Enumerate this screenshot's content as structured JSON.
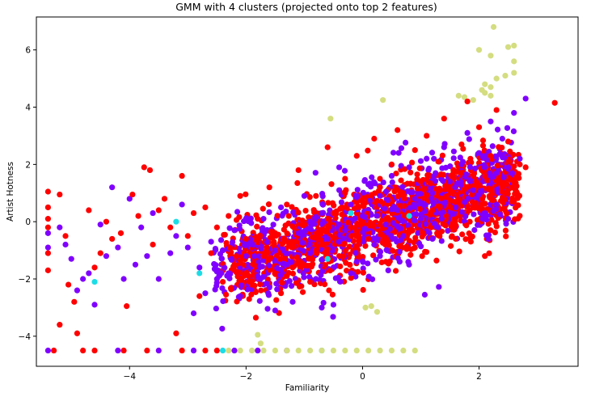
{
  "chart_data": {
    "type": "scatter",
    "title": "GMM with 4 clusters (projected onto top 2 features)",
    "xlabel": "Familiarity",
    "ylabel": "Artist Hotness",
    "xlim": [
      -5.6,
      3.7
    ],
    "ylim": [
      -5.05,
      7.15
    ],
    "xticks": [
      -4,
      -2,
      0,
      2
    ],
    "yticks": [
      -4,
      -2,
      0,
      2,
      4,
      6
    ],
    "grid": false,
    "legend": "none",
    "cluster_colors": [
      "#8000ff",
      "#1cdde6",
      "#d4dd80",
      "#ff0000"
    ],
    "clusters": [
      {
        "color": "#8000ff",
        "points": [
          [
            -5.4,
            -0.4
          ],
          [
            -5.4,
            -0.9
          ],
          [
            -5.2,
            -0.2
          ],
          [
            -5.1,
            -0.8
          ],
          [
            -5.0,
            -1.3
          ],
          [
            -4.9,
            -2.4
          ],
          [
            -4.8,
            -2.0
          ],
          [
            -4.7,
            -1.8
          ],
          [
            -4.6,
            -2.9
          ],
          [
            -4.5,
            -0.1
          ],
          [
            -4.4,
            -1.2
          ],
          [
            -4.3,
            1.2
          ],
          [
            -4.2,
            -0.9
          ],
          [
            -4.1,
            -2.0
          ],
          [
            -4.0,
            0.8
          ],
          [
            -3.9,
            -1.5
          ],
          [
            -3.8,
            -0.2
          ],
          [
            -3.7,
            -1.2
          ],
          [
            -3.6,
            0.3
          ],
          [
            -3.5,
            -2.0
          ],
          [
            -3.3,
            -1.1
          ],
          [
            -3.2,
            -0.5
          ],
          [
            -3.1,
            0.6
          ],
          [
            -3.0,
            -0.9
          ],
          [
            -2.9,
            -3.2
          ],
          [
            -2.8,
            -1.6
          ],
          [
            -2.7,
            -2.5
          ],
          [
            -2.6,
            -0.7
          ],
          [
            -2.5,
            -2.0
          ],
          [
            -2.4,
            -1.0
          ],
          [
            -2.3,
            -1.8
          ],
          [
            -2.2,
            -0.3
          ],
          [
            -2.1,
            -2.6
          ],
          [
            -2.0,
            -1.2
          ],
          [
            -1.9,
            -0.8
          ],
          [
            -1.8,
            -1.9
          ],
          [
            -1.7,
            0.1
          ],
          [
            -1.6,
            -2.3
          ],
          [
            -1.5,
            -1.0
          ],
          [
            -1.4,
            0.5
          ],
          [
            -1.3,
            -1.5
          ],
          [
            -1.2,
            -2.8
          ],
          [
            -1.1,
            -0.4
          ],
          [
            -1.0,
            0.9
          ],
          [
            -0.9,
            -1.1
          ],
          [
            -0.8,
            -2.0
          ],
          [
            -0.7,
            0.3
          ],
          [
            -0.6,
            -0.6
          ],
          [
            -0.5,
            -2.9
          ],
          [
            -0.4,
            1.1
          ],
          [
            -0.3,
            -0.3
          ],
          [
            -0.2,
            0.6
          ],
          [
            -0.1,
            -1.4
          ],
          [
            0.0,
            0.2
          ],
          [
            0.1,
            1.3
          ],
          [
            0.2,
            -0.8
          ],
          [
            0.3,
            0.9
          ],
          [
            0.4,
            -0.1
          ],
          [
            0.5,
            1.6
          ],
          [
            0.6,
            0.4
          ],
          [
            0.7,
            -0.5
          ],
          [
            0.8,
            1.9
          ],
          [
            0.9,
            0.8
          ],
          [
            1.0,
            0.1
          ],
          [
            1.1,
            2.2
          ],
          [
            1.2,
            1.0
          ],
          [
            1.3,
            -0.2
          ],
          [
            1.4,
            2.6
          ],
          [
            1.5,
            1.4
          ],
          [
            1.6,
            0.5
          ],
          [
            1.7,
            2.0
          ],
          [
            1.8,
            3.1
          ],
          [
            1.9,
            1.1
          ],
          [
            2.0,
            2.4
          ],
          [
            2.1,
            0.3
          ],
          [
            2.2,
            3.5
          ],
          [
            2.3,
            1.7
          ],
          [
            2.4,
            2.9
          ],
          [
            2.5,
            0.1
          ],
          [
            2.6,
            3.8
          ],
          [
            2.7,
            2.2
          ],
          [
            2.8,
            4.3
          ],
          [
            2.5,
            1.9
          ],
          [
            2.3,
            0.6
          ],
          [
            -0.2,
            -1.8
          ],
          [
            0.3,
            -1.2
          ],
          [
            -1.5,
            -3.1
          ],
          [
            -0.7,
            -3.0
          ],
          [
            1.2,
            -0.6
          ],
          [
            -5.4,
            -4.5
          ],
          [
            -4.2,
            -4.5
          ],
          [
            -3.5,
            -4.5
          ],
          [
            -2.9,
            -4.5
          ],
          [
            -2.2,
            -4.5
          ],
          [
            -1.8,
            -4.5
          ],
          [
            -1.3,
            -4.5
          ]
        ]
      },
      {
        "color": "#1cdde6",
        "points": [
          [
            -3.2,
            0.0
          ],
          [
            -4.6,
            -2.1
          ],
          [
            -2.4,
            -4.5
          ],
          [
            -0.7,
            -4.5
          ],
          [
            -0.6,
            -1.3
          ],
          [
            -0.2,
            0.3
          ],
          [
            -2.8,
            -1.8
          ],
          [
            0.8,
            0.2
          ]
        ]
      },
      {
        "color": "#d4dd80",
        "points": [
          [
            2.25,
            6.8
          ],
          [
            2.5,
            6.1
          ],
          [
            2.6,
            6.15
          ],
          [
            2.0,
            6.0
          ],
          [
            2.2,
            5.8
          ],
          [
            2.6,
            5.6
          ],
          [
            2.6,
            5.2
          ],
          [
            2.3,
            5.0
          ],
          [
            2.45,
            5.1
          ],
          [
            2.1,
            4.8
          ],
          [
            2.2,
            4.7
          ],
          [
            2.05,
            4.6
          ],
          [
            2.1,
            4.5
          ],
          [
            2.2,
            4.4
          ],
          [
            1.65,
            4.4
          ],
          [
            1.75,
            4.35
          ],
          [
            1.9,
            4.25
          ],
          [
            0.35,
            4.25
          ],
          [
            -0.55,
            3.6
          ],
          [
            0.05,
            -3.0
          ],
          [
            0.15,
            -2.95
          ],
          [
            0.25,
            -3.15
          ],
          [
            -1.8,
            -3.95
          ],
          [
            -1.75,
            -4.25
          ],
          [
            -2.3,
            -4.5
          ],
          [
            -2.1,
            -4.5
          ],
          [
            -1.9,
            -4.5
          ],
          [
            -1.7,
            -4.5
          ],
          [
            -1.5,
            -4.5
          ],
          [
            -1.3,
            -4.5
          ],
          [
            -1.1,
            -4.5
          ],
          [
            -0.9,
            -4.5
          ],
          [
            -0.7,
            -4.5
          ],
          [
            -0.5,
            -4.5
          ],
          [
            -0.3,
            -4.5
          ],
          [
            -0.1,
            -4.5
          ],
          [
            0.1,
            -4.5
          ],
          [
            0.3,
            -4.5
          ],
          [
            0.5,
            -4.5
          ],
          [
            0.7,
            -4.5
          ],
          [
            0.9,
            -4.5
          ]
        ]
      },
      {
        "color": "#ff0000",
        "points": [
          [
            -5.4,
            1.05
          ],
          [
            -5.4,
            0.5
          ],
          [
            -5.4,
            0.1
          ],
          [
            -5.4,
            -0.2
          ],
          [
            -5.4,
            -1.1
          ],
          [
            -5.4,
            -1.7
          ],
          [
            -5.2,
            0.95
          ],
          [
            -5.1,
            -0.5
          ],
          [
            -5.2,
            -3.6
          ],
          [
            -5.05,
            -2.2
          ],
          [
            -4.95,
            -2.8
          ],
          [
            -4.9,
            -3.9
          ],
          [
            -4.7,
            0.4
          ],
          [
            -4.6,
            -1.6
          ],
          [
            -4.5,
            -1.1
          ],
          [
            -4.4,
            0.0
          ],
          [
            -4.3,
            -0.6
          ],
          [
            -4.15,
            -0.4
          ],
          [
            -4.05,
            -2.95
          ],
          [
            -3.95,
            0.95
          ],
          [
            -3.85,
            0.2
          ],
          [
            -3.75,
            1.9
          ],
          [
            -3.65,
            1.8
          ],
          [
            -3.6,
            -0.8
          ],
          [
            -3.5,
            0.4
          ],
          [
            -3.4,
            0.8
          ],
          [
            -3.3,
            -0.2
          ],
          [
            -3.2,
            -3.9
          ],
          [
            -3.1,
            1.6
          ],
          [
            -3.0,
            -0.5
          ],
          [
            -2.9,
            0.3
          ],
          [
            -2.8,
            -2.6
          ],
          [
            -2.7,
            0.5
          ],
          [
            -2.6,
            -1.1
          ],
          [
            -2.5,
            -0.2
          ],
          [
            -2.4,
            -2.1
          ],
          [
            -2.3,
            0.2
          ],
          [
            -2.2,
            -1.5
          ],
          [
            -2.1,
            0.9
          ],
          [
            -2.0,
            -0.6
          ],
          [
            -1.9,
            -2.2
          ],
          [
            -1.8,
            0.1
          ],
          [
            -1.7,
            -1.2
          ],
          [
            -1.6,
            1.2
          ],
          [
            -1.5,
            -0.4
          ],
          [
            -1.4,
            -2.5
          ],
          [
            -1.3,
            0.6
          ],
          [
            -1.2,
            -1.6
          ],
          [
            -1.1,
            1.8
          ],
          [
            -1.0,
            -0.1
          ],
          [
            -0.9,
            -2.1
          ],
          [
            -0.8,
            0.9
          ],
          [
            -0.7,
            -0.8
          ],
          [
            -0.6,
            2.6
          ],
          [
            -0.5,
            0.3
          ],
          [
            -0.4,
            -1.2
          ],
          [
            -0.3,
            1.5
          ],
          [
            -0.2,
            -0.2
          ],
          [
            -0.1,
            2.3
          ],
          [
            0.0,
            0.7
          ],
          [
            0.1,
            -0.6
          ],
          [
            0.2,
            2.9
          ],
          [
            0.3,
            1.2
          ],
          [
            0.4,
            0.1
          ],
          [
            0.5,
            2.0
          ],
          [
            0.6,
            3.2
          ],
          [
            0.7,
            0.9
          ],
          [
            0.8,
            -0.3
          ],
          [
            0.9,
            2.5
          ],
          [
            1.0,
            1.4
          ],
          [
            1.1,
            3.0
          ],
          [
            1.2,
            0.4
          ],
          [
            1.3,
            2.1
          ],
          [
            1.4,
            3.6
          ],
          [
            1.5,
            1.0
          ],
          [
            1.6,
            -0.6
          ],
          [
            1.7,
            2.7
          ],
          [
            1.8,
            4.2
          ],
          [
            1.9,
            1.6
          ],
          [
            2.0,
            3.3
          ],
          [
            2.1,
            -1.2
          ],
          [
            2.2,
            2.3
          ],
          [
            2.3,
            3.9
          ],
          [
            2.4,
            1.2
          ],
          [
            2.5,
            2.8
          ],
          [
            2.6,
            0.7
          ],
          [
            2.7,
            2.0
          ],
          [
            2.8,
            1.9
          ],
          [
            3.3,
            4.15
          ],
          [
            -0.3,
            1.0
          ],
          [
            -0.8,
            -1.0
          ],
          [
            0.4,
            -1.4
          ],
          [
            -1.3,
            -1.9
          ],
          [
            0.9,
            -0.9
          ],
          [
            -5.3,
            -4.5
          ],
          [
            -4.8,
            -4.5
          ],
          [
            -4.6,
            -4.5
          ],
          [
            -4.1,
            -4.5
          ],
          [
            -3.7,
            -4.5
          ],
          [
            -3.1,
            -4.5
          ],
          [
            -2.7,
            -4.5
          ],
          [
            -2.5,
            -4.5
          ]
        ]
      }
    ],
    "dense_clouds": [
      {
        "color": "#8000ff",
        "count": 900,
        "x_range": [
          -2.6,
          2.6
        ],
        "slope": 0.65,
        "intercept": -0.1,
        "spread": 0.75
      },
      {
        "color": "#ff0000",
        "count": 1300,
        "x_range": [
          -2.4,
          2.7
        ],
        "slope": 0.62,
        "intercept": -0.2,
        "spread": 0.7
      }
    ]
  }
}
